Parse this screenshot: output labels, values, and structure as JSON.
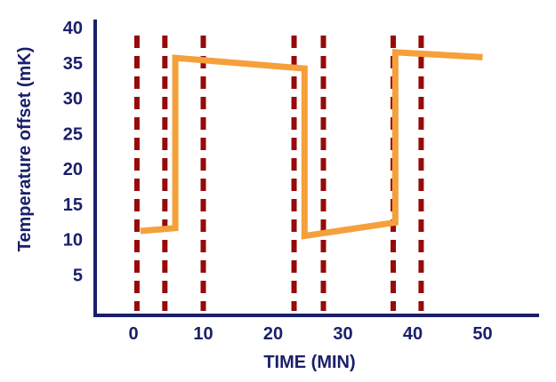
{
  "chart_data": {
    "type": "line",
    "title": "",
    "xlabel": "TIME (MIN)",
    "ylabel": "Temperature offset (mK)",
    "xlim": [
      -5,
      58
    ],
    "ylim": [
      0,
      40
    ],
    "xticks": [
      0,
      10,
      20,
      30,
      40,
      50
    ],
    "yticks": [
      5,
      10,
      15,
      20,
      25,
      30,
      35,
      40
    ],
    "grid": false,
    "legend": "none",
    "series": [
      {
        "color": "#f5a03a",
        "x": [
          1,
          6,
          6,
          24.5,
          24.5,
          37.5,
          37.5,
          50
        ],
        "y": [
          11.2,
          11.6,
          35.7,
          34.2,
          10.5,
          12.4,
          36.5,
          35.8
        ]
      }
    ],
    "markers": {
      "style": "dashed-vertical",
      "color": "#960a0a",
      "x": [
        0.5,
        4.5,
        10,
        23,
        27.2,
        37.2,
        41.2
      ]
    },
    "colors": {
      "axis": "#1a1f6b",
      "text": "#1a1f6b"
    }
  }
}
